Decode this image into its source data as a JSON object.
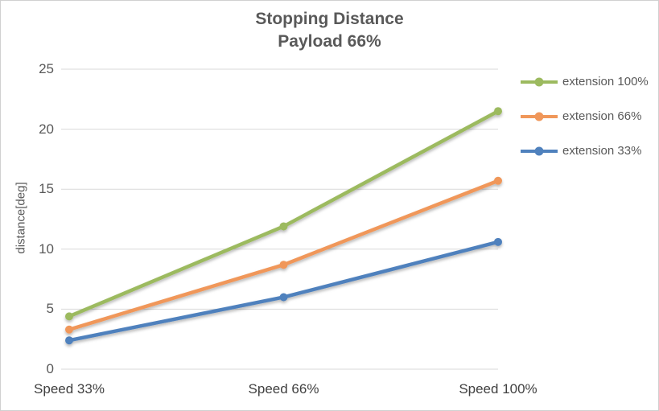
{
  "chart_data": {
    "type": "line",
    "title": "Stopping Distance",
    "subtitle": "Payload 66%",
    "xlabel": "",
    "ylabel": "distance[deg]",
    "categories": [
      "Speed 33%",
      "Speed 66%",
      "Speed 100%"
    ],
    "series": [
      {
        "name": "extension 100%",
        "color": "#9CBA5F",
        "values": [
          4.4,
          11.9,
          21.5
        ]
      },
      {
        "name": "extension 66%",
        "color": "#F0975A",
        "values": [
          3.3,
          8.7,
          15.7
        ]
      },
      {
        "name": "extension 33%",
        "color": "#4F81BD",
        "values": [
          2.4,
          6.0,
          10.6
        ]
      }
    ],
    "ylim": [
      0,
      25
    ],
    "yticks": [
      0,
      5,
      10,
      15,
      20,
      25
    ],
    "grid": true,
    "legend_position": "right",
    "gridline_color": "#d9d9d9",
    "text_color": "#595959"
  }
}
